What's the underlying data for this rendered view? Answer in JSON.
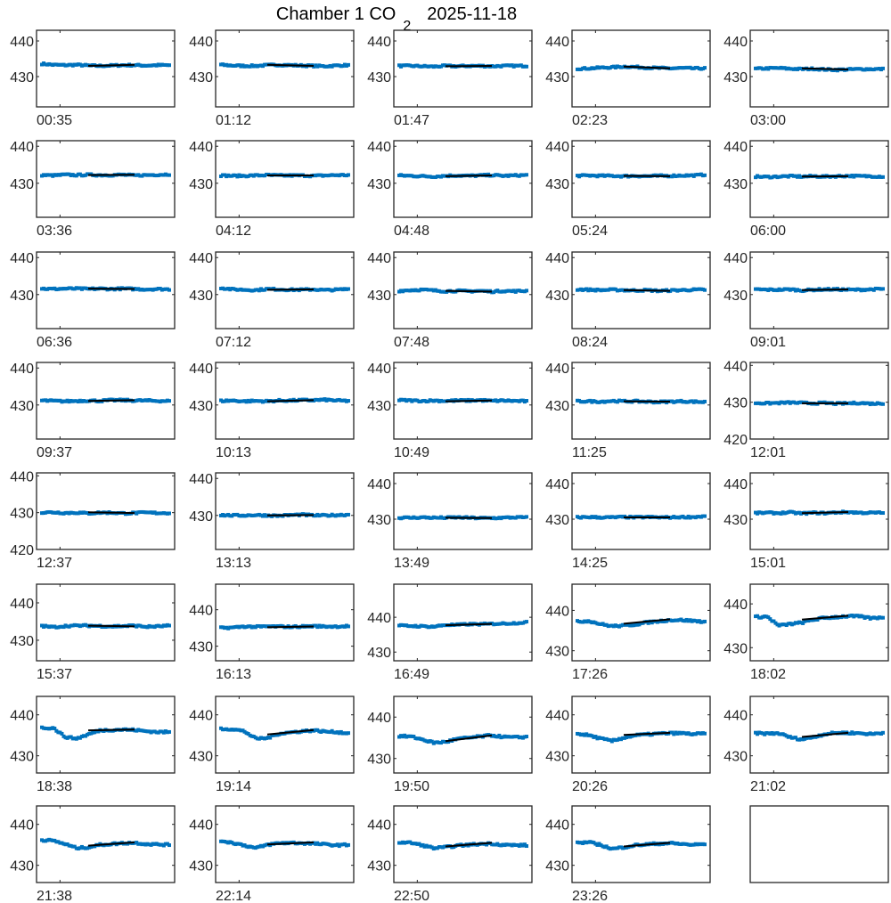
{
  "chart_data": {
    "type": "scatter",
    "title": {
      "prefix": "Chamber 1 CO",
      "subscript": "2",
      "suffix": "2025-11-18"
    },
    "colors": {
      "data": "#0072BD",
      "fit": "#000000",
      "axis": "#262626"
    },
    "panels": [
      {
        "label": "00:35",
        "ylim": [
          421.5,
          443
        ],
        "profile": [
          433.6,
          433.3,
          433.2,
          433.3,
          433.1,
          433,
          433.1,
          433.2,
          433.2,
          433.1,
          433.2,
          433.2
        ],
        "fit": [
          4,
          8,
          433,
          433.3
        ]
      },
      {
        "label": "01:12",
        "ylim": [
          421.5,
          443
        ],
        "profile": [
          433.3,
          433.1,
          433,
          433,
          433.2,
          433.3,
          433.2,
          433.1,
          433,
          432.9,
          433.1,
          433.2
        ],
        "fit": [
          4,
          8,
          433.3,
          433
        ]
      },
      {
        "label": "01:47",
        "ylim": [
          421.5,
          443
        ],
        "profile": [
          433,
          433,
          432.9,
          432.8,
          433,
          432.9,
          433,
          433,
          432.9,
          433,
          433,
          433
        ],
        "fit": [
          4,
          8,
          432.9,
          433
        ]
      },
      {
        "label": "02:23",
        "ylim": [
          421.5,
          443
        ],
        "profile": [
          432.2,
          432.3,
          432.5,
          432.6,
          432.8,
          432.7,
          432.5,
          432.4,
          432.3,
          432.4,
          432.3,
          432.3
        ],
        "fit": [
          4,
          8,
          432.8,
          432.3
        ]
      },
      {
        "label": "03:00",
        "ylim": [
          421.5,
          443
        ],
        "profile": [
          432.2,
          432.3,
          432.4,
          432.2,
          432.1,
          432.2,
          432,
          431.9,
          432,
          432.1,
          432.1,
          432.1
        ],
        "fit": [
          4,
          8,
          432.3,
          432
        ]
      },
      {
        "label": "03:36",
        "ylim": [
          420.8,
          441.5
        ],
        "profile": [
          432.2,
          432.1,
          432.3,
          432.2,
          432.3,
          432.2,
          432.2,
          432.3,
          432.1,
          432.2,
          432.3,
          432.4
        ],
        "fit": [
          4,
          8,
          432.2,
          432.3
        ]
      },
      {
        "label": "04:12",
        "ylim": [
          420.8,
          441.5
        ],
        "profile": [
          432.1,
          432,
          432,
          432.1,
          432.2,
          432.1,
          432.1,
          432.1,
          432,
          432.1,
          432.2,
          432.2
        ],
        "fit": [
          4,
          8,
          432.1,
          432.1
        ]
      },
      {
        "label": "04:48",
        "ylim": [
          420.8,
          441.5
        ],
        "profile": [
          432.1,
          432,
          431.9,
          431.8,
          432,
          432.1,
          432,
          432.1,
          432.2,
          432,
          432.1,
          432.2
        ],
        "fit": [
          4,
          8,
          431.9,
          432.1
        ]
      },
      {
        "label": "05:24",
        "ylim": [
          420.8,
          441.5
        ],
        "profile": [
          432,
          432.1,
          432,
          432,
          431.9,
          432,
          431.9,
          432,
          432,
          432.1,
          432.1,
          432.3
        ],
        "fit": [
          4,
          8,
          432,
          431.9
        ]
      },
      {
        "label": "06:00",
        "ylim": [
          420.8,
          441.5
        ],
        "profile": [
          431.8,
          431.7,
          431.8,
          431.9,
          431.8,
          431.9,
          431.8,
          431.9,
          432,
          431.9,
          431.9,
          431.8
        ],
        "fit": [
          4,
          8,
          431.8,
          431.9
        ]
      },
      {
        "label": "06:36",
        "ylim": [
          420.8,
          441.5
        ],
        "profile": [
          431.6,
          431.5,
          431.6,
          431.6,
          431.5,
          431.6,
          431.5,
          431.6,
          431.5,
          431.4,
          431.5,
          431.4
        ],
        "fit": [
          4,
          8,
          431.6,
          431.5
        ]
      },
      {
        "label": "07:12",
        "ylim": [
          420.8,
          441.5
        ],
        "profile": [
          431.8,
          431.4,
          431.3,
          431.2,
          431.5,
          431.4,
          431.3,
          431.3,
          431.4,
          431.2,
          431.3,
          431.5
        ],
        "fit": [
          4,
          8,
          431.3,
          431.4
        ]
      },
      {
        "label": "07:48",
        "ylim": [
          420.8,
          441.5
        ],
        "profile": [
          431,
          431.2,
          431.3,
          431.1,
          430.9,
          431,
          430.9,
          431,
          430.8,
          431,
          430.9,
          431
        ],
        "fit": [
          4,
          8,
          431,
          430.8
        ]
      },
      {
        "label": "08:24",
        "ylim": [
          420.8,
          441.5
        ],
        "profile": [
          431.4,
          431.3,
          431.2,
          431.3,
          431.2,
          431.1,
          431.2,
          431,
          431.1,
          431.2,
          431.3,
          431.3
        ],
        "fit": [
          4,
          8,
          431.2,
          431
        ]
      },
      {
        "label": "09:01",
        "ylim": [
          420.8,
          441.5
        ],
        "profile": [
          431.4,
          431.3,
          431.3,
          431.4,
          431.1,
          431.3,
          431.4,
          431.4,
          431.3,
          431.3,
          431.4,
          431.5
        ],
        "fit": [
          4,
          8,
          431.2,
          431.4
        ]
      },
      {
        "label": "09:37",
        "ylim": [
          420.8,
          441.5
        ],
        "profile": [
          431.2,
          431.1,
          431,
          431.1,
          431.2,
          431.1,
          431.3,
          431.3,
          431.2,
          431.2,
          431.1,
          431.1
        ],
        "fit": [
          4,
          8,
          431.1,
          431.3
        ]
      },
      {
        "label": "10:13",
        "ylim": [
          420.8,
          441.5
        ],
        "profile": [
          431.1,
          431.2,
          431,
          431.1,
          431,
          431.2,
          431.2,
          431.3,
          431.3,
          431.4,
          431.2,
          431.1
        ],
        "fit": [
          4,
          8,
          431,
          431.3
        ]
      },
      {
        "label": "10:49",
        "ylim": [
          420.8,
          441.5
        ],
        "profile": [
          431.3,
          431.2,
          431.1,
          431.2,
          431.1,
          431.2,
          431.2,
          431.3,
          431.1,
          431.2,
          431.1,
          431
        ],
        "fit": [
          4,
          8,
          431,
          431.2
        ]
      },
      {
        "label": "11:25",
        "ylim": [
          420.8,
          441.5
        ],
        "profile": [
          431,
          431,
          430.9,
          431.1,
          431,
          431,
          430.9,
          430.8,
          430.9,
          431,
          430.9,
          430.8
        ],
        "fit": [
          4,
          8,
          431,
          430.9
        ]
      },
      {
        "label": "12:01",
        "ylim": [
          420,
          440.8
        ],
        "profile": [
          429.8,
          429.7,
          429.8,
          429.9,
          429.8,
          429.7,
          429.8,
          429.6,
          429.7,
          429.8,
          429.6,
          429.7
        ],
        "fit": [
          4,
          8,
          429.7,
          429.7
        ]
      },
      {
        "label": "12:37",
        "ylim": [
          420,
          440.8
        ],
        "profile": [
          430,
          430.1,
          429.9,
          430,
          429.8,
          430,
          430,
          429.8,
          429.9,
          430,
          429.9,
          429.9
        ],
        "fit": [
          4,
          8,
          430.1,
          429.9
        ]
      },
      {
        "label": "13:13",
        "ylim": [
          420.8,
          441.5
        ],
        "profile": [
          430.1,
          430,
          430,
          430.1,
          430,
          429.9,
          430.1,
          430.2,
          430,
          430,
          430.1,
          430.2
        ],
        "fit": [
          4,
          8,
          430,
          430.1
        ]
      },
      {
        "label": "13:49",
        "ylim": [
          421.5,
          443
        ],
        "profile": [
          430.4,
          430.4,
          430.5,
          430.4,
          430.4,
          430.5,
          430.4,
          430.3,
          430.3,
          430.4,
          430.5,
          430.5
        ],
        "fit": [
          4,
          8,
          430.4,
          430.3
        ]
      },
      {
        "label": "14:25",
        "ylim": [
          421.5,
          443
        ],
        "profile": [
          430.5,
          430.6,
          430.5,
          430.5,
          430.6,
          430.5,
          430.6,
          430.5,
          430.5,
          430.6,
          430.6,
          430.8
        ],
        "fit": [
          4,
          8,
          430.5,
          430.5
        ]
      },
      {
        "label": "15:01",
        "ylim": [
          421.5,
          443
        ],
        "profile": [
          431.7,
          431.8,
          431.7,
          431.9,
          431.6,
          431.8,
          431.7,
          431.9,
          432,
          431.8,
          431.8,
          431.8
        ],
        "fit": [
          4,
          8,
          431.7,
          432
        ]
      },
      {
        "label": "15:37",
        "ylim": [
          424.5,
          445
        ],
        "profile": [
          433.8,
          433.5,
          433.8,
          433.9,
          433.9,
          433.8,
          433.7,
          433.8,
          433.9,
          433.6,
          433.7,
          433.9
        ],
        "fit": [
          4,
          8,
          433.9,
          433.7
        ]
      },
      {
        "label": "16:13",
        "ylim": [
          426,
          447
        ],
        "profile": [
          435,
          435.1,
          435.4,
          435.3,
          435.4,
          435.4,
          435.3,
          435.4,
          435.5,
          435.4,
          435.4,
          435.5
        ],
        "fit": [
          4,
          8,
          435.2,
          435.4
        ]
      },
      {
        "label": "16:49",
        "ylim": [
          427.5,
          449.5
        ],
        "profile": [
          437.6,
          437.5,
          437.4,
          437.3,
          437.8,
          437.8,
          438,
          438,
          438.1,
          438.2,
          438.3,
          438.6
        ],
        "fit": [
          4,
          8,
          437.7,
          438.1
        ]
      },
      {
        "label": "17:26",
        "ylim": [
          427.5,
          446.5
        ],
        "profile": [
          437.2,
          437.4,
          436.6,
          436.1,
          436.2,
          436.5,
          437,
          437.3,
          437.6,
          437.6,
          437.4,
          437.2
        ],
        "fit": [
          4,
          8,
          436.7,
          437.8
        ]
      },
      {
        "label": "18:02",
        "ylim": [
          427,
          444.5
        ],
        "profile": [
          437,
          437.1,
          435,
          435.4,
          435.7,
          436.4,
          436.8,
          437,
          437.2,
          437.1,
          436.7,
          437
        ],
        "fit": [
          4,
          8,
          436.4,
          437.3
        ]
      },
      {
        "label": "18:38",
        "ylim": [
          425.8,
          444.5
        ],
        "profile": [
          436.8,
          436.8,
          434.6,
          434.2,
          435.2,
          436.2,
          436.3,
          436.4,
          436.3,
          436,
          435.8,
          435.8
        ],
        "fit": [
          4,
          8,
          436.2,
          436.4
        ]
      },
      {
        "label": "19:14",
        "ylim": [
          425.8,
          444.5
        ],
        "profile": [
          436.6,
          436.5,
          436,
          434.2,
          434.3,
          435.4,
          435.7,
          436,
          436.2,
          435.9,
          435.8,
          435.5
        ],
        "fit": [
          4,
          8,
          435.2,
          436.3
        ]
      },
      {
        "label": "19:50",
        "ylim": [
          426.5,
          445
        ],
        "profile": [
          435.4,
          435.3,
          434.6,
          433.8,
          434,
          434.7,
          435,
          435.3,
          435.6,
          435.2,
          435.1,
          435.2
        ],
        "fit": [
          4,
          8,
          434.2,
          435.6
        ]
      },
      {
        "label": "20:26",
        "ylim": [
          425.8,
          444.5
        ],
        "profile": [
          435.4,
          435,
          434.2,
          433.6,
          434.4,
          435,
          435.2,
          435.4,
          435.5,
          435.5,
          435.3,
          435.4
        ],
        "fit": [
          4,
          8,
          435.1,
          435.6
        ]
      },
      {
        "label": "21:02",
        "ylim": [
          425.8,
          444.5
        ],
        "profile": [
          435.5,
          435.4,
          435.5,
          434.5,
          434,
          434.6,
          435.3,
          435.6,
          435.6,
          435.5,
          435.3,
          435.6
        ],
        "fit": [
          4,
          8,
          434.6,
          435.6
        ]
      },
      {
        "label": "21:38",
        "ylim": [
          425.8,
          444.5
        ],
        "profile": [
          436.2,
          436,
          435.2,
          434.2,
          434.4,
          435,
          435.2,
          435.4,
          435.5,
          435.2,
          435.1,
          435
        ],
        "fit": [
          4,
          8,
          434.8,
          435.6
        ]
      },
      {
        "label": "22:14",
        "ylim": [
          425.8,
          444.5
        ],
        "profile": [
          436,
          435.5,
          434.9,
          434.2,
          435,
          435.4,
          435.5,
          435.4,
          435.3,
          435.1,
          434.9,
          435
        ],
        "fit": [
          4,
          8,
          435.1,
          435.6
        ]
      },
      {
        "label": "22:50",
        "ylim": [
          425.8,
          444.5
        ],
        "profile": [
          435.6,
          435.5,
          434.9,
          434.2,
          434.4,
          434.8,
          435,
          435.2,
          435.3,
          435,
          434.9,
          434.9
        ],
        "fit": [
          4,
          8,
          434.6,
          435.5
        ]
      },
      {
        "label": "23:26",
        "ylim": [
          425.8,
          444.5
        ],
        "profile": [
          435.5,
          435.6,
          435,
          434,
          434.4,
          434.9,
          435.1,
          435.3,
          435.4,
          435.2,
          435,
          435.2
        ],
        "fit": [
          4,
          8,
          434.6,
          435.5
        ]
      }
    ]
  }
}
